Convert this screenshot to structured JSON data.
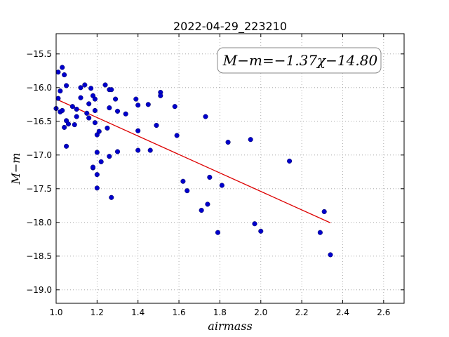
{
  "chart_data": {
    "type": "scatter",
    "title": "2022-04-29_223210",
    "xlabel": "airmass",
    "ylabel": "M−m",
    "xlim": [
      1.0,
      2.7
    ],
    "ylim": [
      -19.2,
      -15.2
    ],
    "xticks": [
      1.0,
      1.2,
      1.4,
      1.6,
      1.8,
      2.0,
      2.2,
      2.4,
      2.6
    ],
    "xtick_labels": [
      "1.0",
      "1.2",
      "1.4",
      "1.6",
      "1.8",
      "2.0",
      "2.2",
      "2.4",
      "2.6"
    ],
    "yticks": [
      -15.5,
      -16.0,
      -16.5,
      -17.0,
      -17.5,
      -18.0,
      -18.5,
      -19.0
    ],
    "ytick_labels": [
      "−15.5",
      "−16.0",
      "−16.5",
      "−17.0",
      "−17.5",
      "−18.0",
      "−18.5",
      "−19.0"
    ],
    "grid": true,
    "annotation": "M−m=−1.37χ−14.80",
    "point_color": "#0000cc",
    "fit_color": "#dd0000",
    "fit": {
      "slope": -1.37,
      "intercept": -14.8,
      "x_range": [
        1.0,
        2.34
      ]
    },
    "points": [
      [
        1.0,
        -16.31
      ],
      [
        1.01,
        -15.77
      ],
      [
        1.01,
        -16.16
      ],
      [
        1.02,
        -16.36
      ],
      [
        1.02,
        -16.05
      ],
      [
        1.03,
        -15.7
      ],
      [
        1.03,
        -16.34
      ],
      [
        1.04,
        -15.81
      ],
      [
        1.04,
        -16.59
      ],
      [
        1.05,
        -16.49
      ],
      [
        1.05,
        -16.87
      ],
      [
        1.05,
        -15.97
      ],
      [
        1.06,
        -16.54
      ],
      [
        1.08,
        -16.28
      ],
      [
        1.09,
        -16.55
      ],
      [
        1.1,
        -16.43
      ],
      [
        1.1,
        -16.32
      ],
      [
        1.12,
        -16.0
      ],
      [
        1.12,
        -16.15
      ],
      [
        1.14,
        -15.96
      ],
      [
        1.15,
        -16.38
      ],
      [
        1.16,
        -16.24
      ],
      [
        1.16,
        -16.45
      ],
      [
        1.17,
        -16.01
      ],
      [
        1.18,
        -16.12
      ],
      [
        1.18,
        -17.19
      ],
      [
        1.18,
        -17.18
      ],
      [
        1.19,
        -16.17
      ],
      [
        1.19,
        -16.52
      ],
      [
        1.19,
        -16.34
      ],
      [
        1.2,
        -16.7
      ],
      [
        1.2,
        -16.96
      ],
      [
        1.2,
        -17.29
      ],
      [
        1.2,
        -17.49
      ],
      [
        1.21,
        -16.65
      ],
      [
        1.22,
        -17.1
      ],
      [
        1.24,
        -15.96
      ],
      [
        1.25,
        -16.6
      ],
      [
        1.26,
        -16.3
      ],
      [
        1.26,
        -16.03
      ],
      [
        1.26,
        -17.02
      ],
      [
        1.27,
        -16.03
      ],
      [
        1.27,
        -17.63
      ],
      [
        1.29,
        -16.17
      ],
      [
        1.3,
        -16.35
      ],
      [
        1.3,
        -16.95
      ],
      [
        1.34,
        -16.39
      ],
      [
        1.39,
        -16.17
      ],
      [
        1.4,
        -16.26
      ],
      [
        1.4,
        -16.64
      ],
      [
        1.4,
        -16.93
      ],
      [
        1.45,
        -16.25
      ],
      [
        1.46,
        -16.93
      ],
      [
        1.49,
        -16.56
      ],
      [
        1.51,
        -16.07
      ],
      [
        1.51,
        -16.12
      ],
      [
        1.58,
        -16.28
      ],
      [
        1.59,
        -16.71
      ],
      [
        1.62,
        -17.39
      ],
      [
        1.64,
        -17.53
      ],
      [
        1.71,
        -17.82
      ],
      [
        1.73,
        -16.43
      ],
      [
        1.74,
        -17.73
      ],
      [
        1.75,
        -17.33
      ],
      [
        1.79,
        -18.15
      ],
      [
        1.81,
        -17.45
      ],
      [
        1.84,
        -16.81
      ],
      [
        1.95,
        -16.77
      ],
      [
        1.97,
        -18.02
      ],
      [
        2.0,
        -18.13
      ],
      [
        2.14,
        -17.09
      ],
      [
        2.29,
        -18.15
      ],
      [
        2.31,
        -17.84
      ],
      [
        2.34,
        -18.48
      ]
    ]
  }
}
